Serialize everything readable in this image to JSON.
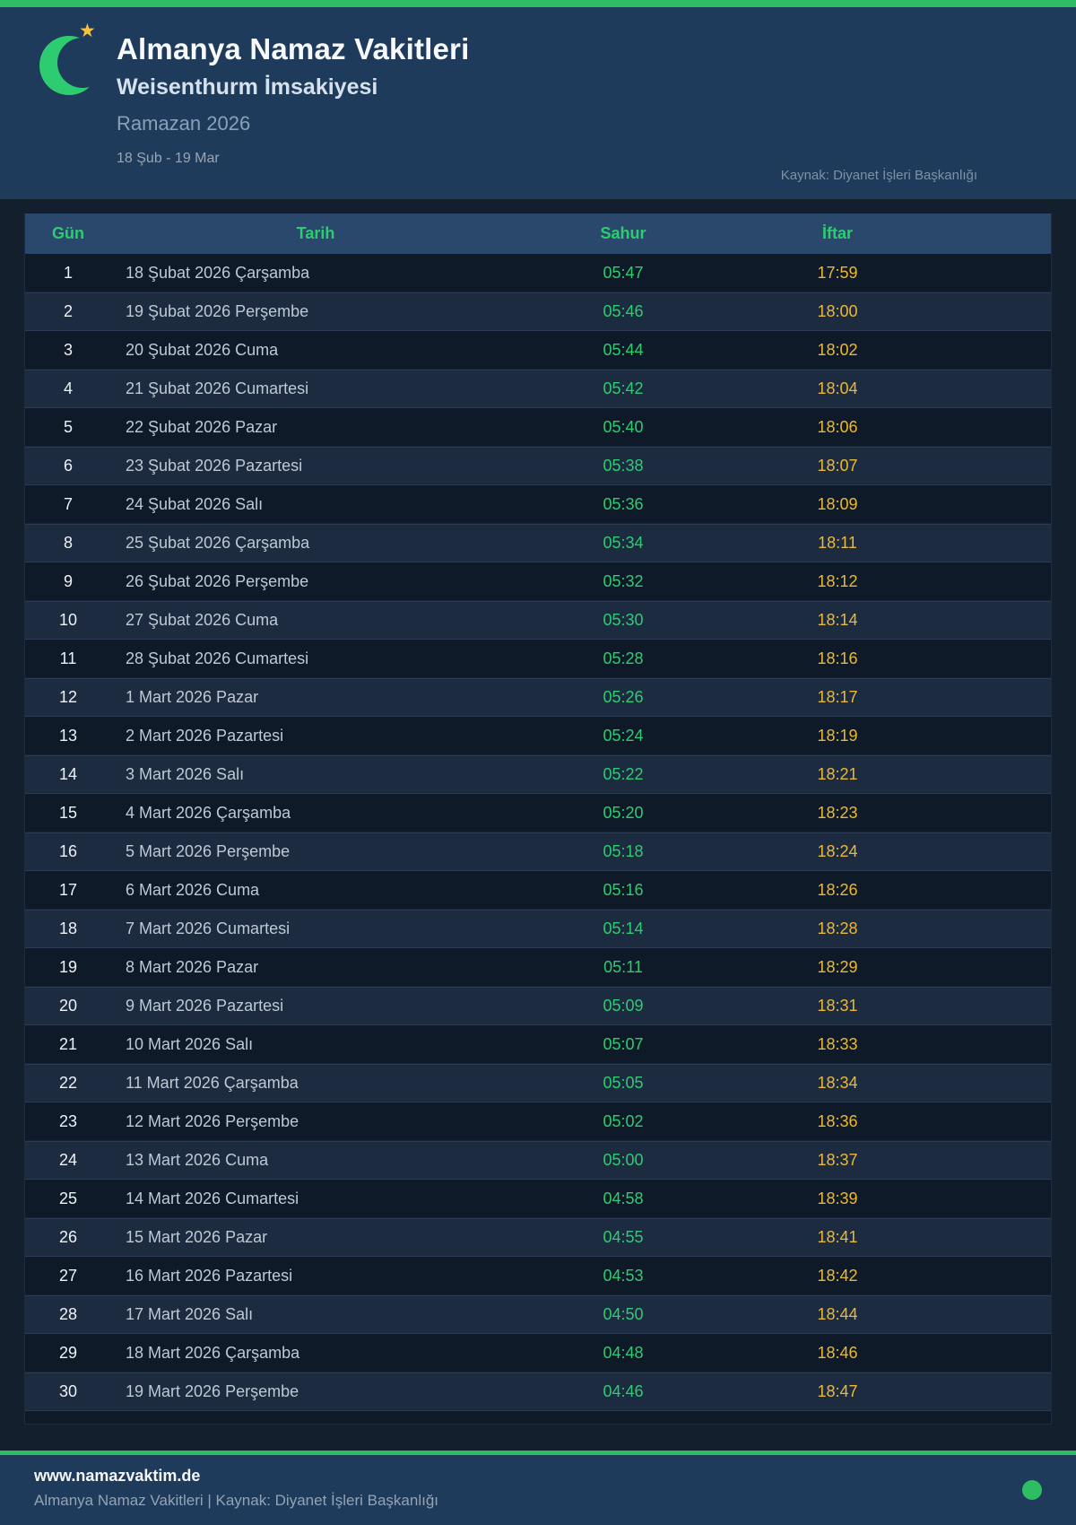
{
  "header": {
    "title": "Almanya Namaz Vakitleri",
    "subtitle": "Weisenthurm İmsakiyesi",
    "season": "Ramazan 2026",
    "date_range": "18 Şub - 19 Mar",
    "source": "Kaynak: Diyanet İşleri Başkanlığı"
  },
  "table": {
    "columns": [
      "Gün",
      "Tarih",
      "Sahur",
      "İftar"
    ],
    "rows": [
      {
        "day": "1",
        "date": "18 Şubat 2026 Çarşamba",
        "sahur": "05:47",
        "iftar": "17:59"
      },
      {
        "day": "2",
        "date": "19 Şubat 2026 Perşembe",
        "sahur": "05:46",
        "iftar": "18:00"
      },
      {
        "day": "3",
        "date": "20 Şubat 2026 Cuma",
        "sahur": "05:44",
        "iftar": "18:02"
      },
      {
        "day": "4",
        "date": "21 Şubat 2026 Cumartesi",
        "sahur": "05:42",
        "iftar": "18:04"
      },
      {
        "day": "5",
        "date": "22 Şubat 2026 Pazar",
        "sahur": "05:40",
        "iftar": "18:06"
      },
      {
        "day": "6",
        "date": "23 Şubat 2026 Pazartesi",
        "sahur": "05:38",
        "iftar": "18:07"
      },
      {
        "day": "7",
        "date": "24 Şubat 2026 Salı",
        "sahur": "05:36",
        "iftar": "18:09"
      },
      {
        "day": "8",
        "date": "25 Şubat 2026 Çarşamba",
        "sahur": "05:34",
        "iftar": "18:11"
      },
      {
        "day": "9",
        "date": "26 Şubat 2026 Perşembe",
        "sahur": "05:32",
        "iftar": "18:12"
      },
      {
        "day": "10",
        "date": "27 Şubat 2026 Cuma",
        "sahur": "05:30",
        "iftar": "18:14"
      },
      {
        "day": "11",
        "date": "28 Şubat 2026 Cumartesi",
        "sahur": "05:28",
        "iftar": "18:16"
      },
      {
        "day": "12",
        "date": "1 Mart 2026 Pazar",
        "sahur": "05:26",
        "iftar": "18:17"
      },
      {
        "day": "13",
        "date": "2 Mart 2026 Pazartesi",
        "sahur": "05:24",
        "iftar": "18:19"
      },
      {
        "day": "14",
        "date": "3 Mart 2026 Salı",
        "sahur": "05:22",
        "iftar": "18:21"
      },
      {
        "day": "15",
        "date": "4 Mart 2026 Çarşamba",
        "sahur": "05:20",
        "iftar": "18:23"
      },
      {
        "day": "16",
        "date": "5 Mart 2026 Perşembe",
        "sahur": "05:18",
        "iftar": "18:24"
      },
      {
        "day": "17",
        "date": "6 Mart 2026 Cuma",
        "sahur": "05:16",
        "iftar": "18:26"
      },
      {
        "day": "18",
        "date": "7 Mart 2026 Cumartesi",
        "sahur": "05:14",
        "iftar": "18:28"
      },
      {
        "day": "19",
        "date": "8 Mart 2026 Pazar",
        "sahur": "05:11",
        "iftar": "18:29"
      },
      {
        "day": "20",
        "date": "9 Mart 2026 Pazartesi",
        "sahur": "05:09",
        "iftar": "18:31"
      },
      {
        "day": "21",
        "date": "10 Mart 2026 Salı",
        "sahur": "05:07",
        "iftar": "18:33"
      },
      {
        "day": "22",
        "date": "11 Mart 2026 Çarşamba",
        "sahur": "05:05",
        "iftar": "18:34"
      },
      {
        "day": "23",
        "date": "12 Mart 2026 Perşembe",
        "sahur": "05:02",
        "iftar": "18:36"
      },
      {
        "day": "24",
        "date": "13 Mart 2026 Cuma",
        "sahur": "05:00",
        "iftar": "18:37"
      },
      {
        "day": "25",
        "date": "14 Mart 2026 Cumartesi",
        "sahur": "04:58",
        "iftar": "18:39"
      },
      {
        "day": "26",
        "date": "15 Mart 2026 Pazar",
        "sahur": "04:55",
        "iftar": "18:41"
      },
      {
        "day": "27",
        "date": "16 Mart 2026 Pazartesi",
        "sahur": "04:53",
        "iftar": "18:42"
      },
      {
        "day": "28",
        "date": "17 Mart 2026 Salı",
        "sahur": "04:50",
        "iftar": "18:44"
      },
      {
        "day": "29",
        "date": "18 Mart 2026 Çarşamba",
        "sahur": "04:48",
        "iftar": "18:46"
      },
      {
        "day": "30",
        "date": "19 Mart 2026 Perşembe",
        "sahur": "04:46",
        "iftar": "18:47"
      }
    ]
  },
  "footer": {
    "website": "www.namazvaktim.de",
    "tagline": "Almanya Namaz Vakitleri | Kaynak: Diyanet İşleri Başkanlığı"
  },
  "colors": {
    "accent_green": "#2ebd63",
    "sahur_green": "#2ecc71",
    "iftar_gold": "#e9b838",
    "header_navy": "#1f3b5c",
    "table_header_blue": "#29486b",
    "page_dark": "#141f2e",
    "star_gold": "#f5c242"
  }
}
